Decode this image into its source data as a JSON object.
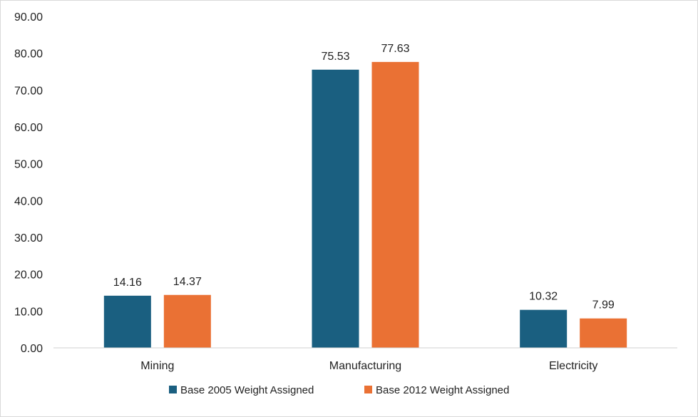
{
  "chart_data": {
    "type": "bar",
    "title": "",
    "xlabel": "",
    "ylabel": "",
    "ylim": [
      0,
      90
    ],
    "yticks": [
      "0.00",
      "10.00",
      "20.00",
      "30.00",
      "40.00",
      "50.00",
      "60.00",
      "70.00",
      "80.00",
      "90.00"
    ],
    "categories": [
      "Mining",
      "Manufacturing",
      "Electricity"
    ],
    "series": [
      {
        "name": "Base 2005 Weight Assigned",
        "color": "#1a5f80",
        "values": [
          14.16,
          75.53,
          10.32
        ],
        "labels": [
          "14.16",
          "75.53",
          "10.32"
        ]
      },
      {
        "name": "Base 2012 Weight Assigned",
        "color": "#ea7134",
        "values": [
          14.37,
          77.63,
          7.99
        ],
        "labels": [
          "14.37",
          "77.63",
          "7.99"
        ]
      }
    ],
    "grid": false,
    "legend_position": "bottom"
  }
}
